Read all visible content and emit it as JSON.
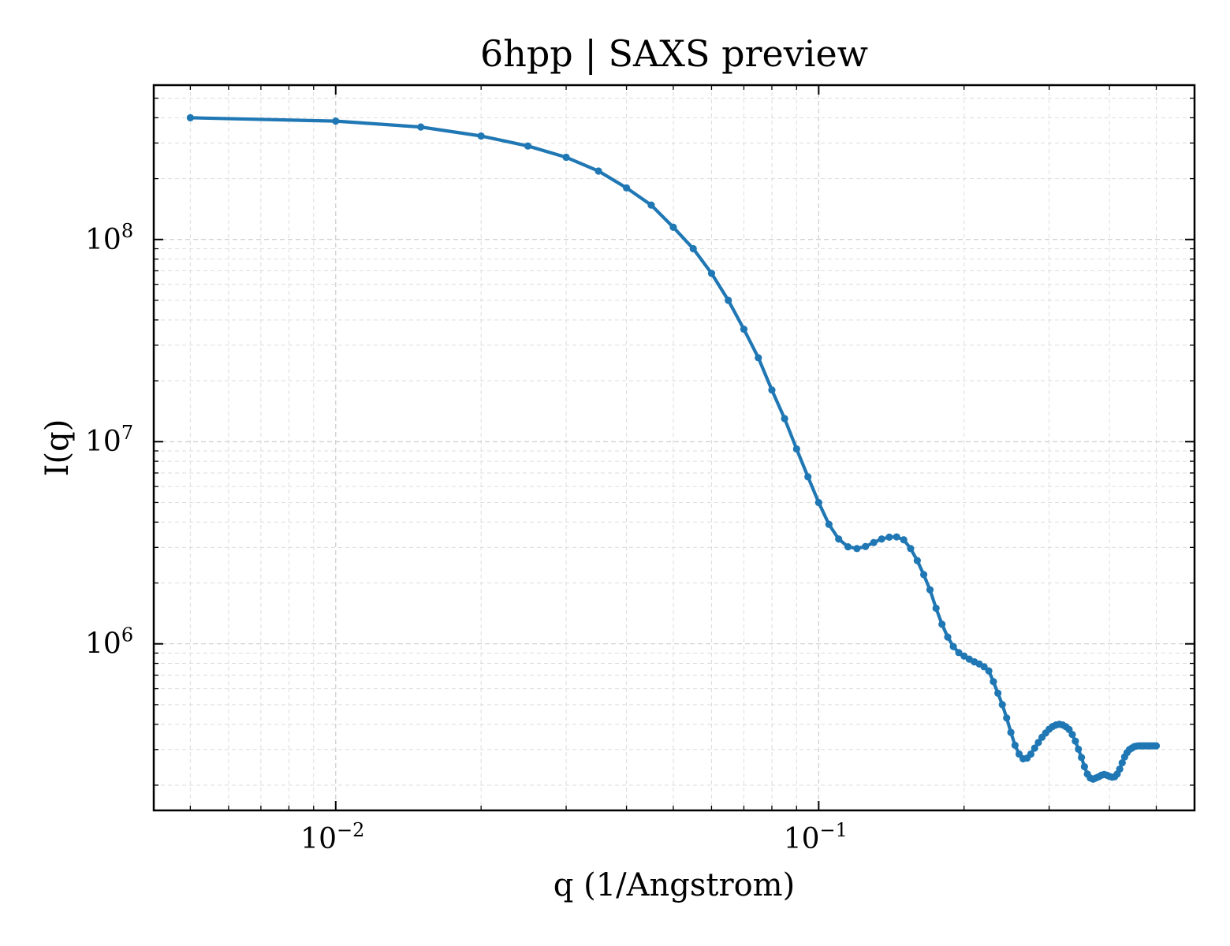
{
  "chart_data": {
    "type": "line",
    "title": "6hpp | SAXS preview",
    "xlabel": "q (1/Angstrom)",
    "ylabel": "I(q)",
    "xscale": "log",
    "yscale": "log",
    "xlim": [
      0.0042,
      0.6
    ],
    "ylim": [
      150000,
      580000000
    ],
    "grid": true,
    "legend": "none",
    "x_ticks": [
      {
        "value": 0.01,
        "base": "10",
        "exp": "−2"
      },
      {
        "value": 0.1,
        "base": "10",
        "exp": "−1"
      }
    ],
    "y_ticks": [
      {
        "value": 1000000,
        "base": "10",
        "exp": "6"
      },
      {
        "value": 10000000,
        "base": "10",
        "exp": "7"
      },
      {
        "value": 100000000,
        "base": "10",
        "exp": "8"
      }
    ],
    "series": [
      {
        "color": "#1f77b4",
        "marker": "circle",
        "x": [
          0.005,
          0.01,
          0.015,
          0.02,
          0.025,
          0.03,
          0.035,
          0.04,
          0.045,
          0.05,
          0.055,
          0.06,
          0.065,
          0.07,
          0.075,
          0.08,
          0.085,
          0.09,
          0.095,
          0.1,
          0.105,
          0.11,
          0.115,
          0.12,
          0.125,
          0.13,
          0.135,
          0.14,
          0.145,
          0.15,
          0.155,
          0.16,
          0.165,
          0.17,
          0.175,
          0.18,
          0.185,
          0.19,
          0.195,
          0.2,
          0.205,
          0.21,
          0.215,
          0.22,
          0.225,
          0.23,
          0.235,
          0.24,
          0.245,
          0.25,
          0.255,
          0.26,
          0.265,
          0.27,
          0.275,
          0.28,
          0.285,
          0.29,
          0.295,
          0.3,
          0.305,
          0.31,
          0.315,
          0.32,
          0.325,
          0.33,
          0.335,
          0.34,
          0.345,
          0.35,
          0.355,
          0.36,
          0.365,
          0.37,
          0.375,
          0.38,
          0.385,
          0.39,
          0.395,
          0.4,
          0.405,
          0.41,
          0.415,
          0.42,
          0.425,
          0.43,
          0.435,
          0.44,
          0.445,
          0.45,
          0.455,
          0.46,
          0.465,
          0.47,
          0.475,
          0.48,
          0.485,
          0.49,
          0.495,
          0.5
        ],
        "y": [
          400000000,
          385000000,
          360000000,
          325000000,
          290000000,
          255000000,
          218000000,
          180000000,
          148000000,
          115000000,
          90000000,
          68000000,
          50000000,
          36000000,
          26000000,
          18000000,
          13000000,
          9200000,
          6700000,
          5000000,
          3900000,
          3300000,
          3020000,
          2960000,
          3030000,
          3170000,
          3300000,
          3370000,
          3380000,
          3270000,
          2960000,
          2580000,
          2200000,
          1850000,
          1500000,
          1250000,
          1080000,
          970000,
          905000,
          870000,
          840000,
          815000,
          795000,
          770000,
          735000,
          650000,
          570000,
          500000,
          430000,
          365000,
          315000,
          285000,
          270000,
          272000,
          285000,
          305000,
          325000,
          345000,
          362000,
          378000,
          390000,
          397000,
          400000,
          397000,
          389000,
          377000,
          356000,
          330000,
          301000,
          274000,
          247000,
          227000,
          217000,
          214000,
          217000,
          220000,
          224000,
          226000,
          224000,
          221000,
          219000,
          220000,
          227000,
          240000,
          258000,
          276000,
          290000,
          300000,
          305000,
          310000,
          312000,
          313000,
          313000,
          313000,
          313000,
          313000,
          313000,
          313000,
          313000,
          313000
        ]
      }
    ]
  }
}
